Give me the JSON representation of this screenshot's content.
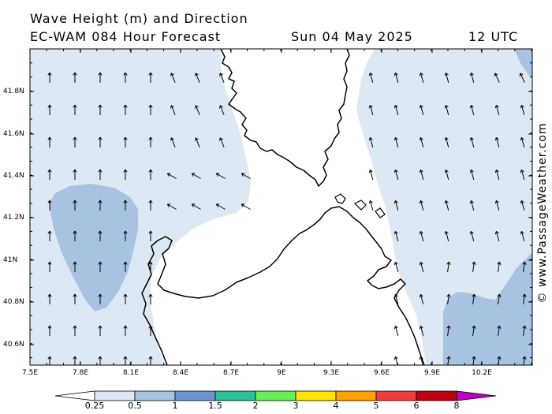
{
  "header": {
    "title": "Wave Height (m) and Direction",
    "model": "EC-WAM 084 Hour Forecast",
    "date": "Sun 04 May 2025",
    "time": "12 UTC"
  },
  "credit": "© www.PassageWeather.com",
  "axes": {
    "x_ticks": [
      "7.5E",
      "7.8E",
      "8.1E",
      "8.4E",
      "8.7E",
      "9E",
      "9.3E",
      "9.6E",
      "9.9E",
      "10.2E"
    ],
    "y_ticks": [
      "41.8N",
      "41.6N",
      "41.4N",
      "41.2N",
      "41N",
      "40.8N",
      "40.6N"
    ]
  },
  "legend": {
    "labels": [
      "0.25",
      "0.5",
      "1",
      "1.5",
      "2",
      "3",
      "4",
      "5",
      "6",
      "8"
    ],
    "colors": [
      "#ffffff",
      "#dde8f5",
      "#a8c2e2",
      "#6d94d0",
      "#2bbf9a",
      "#66ee55",
      "#ffe600",
      "#ffa200",
      "#f03c3c",
      "#c00010",
      "#c000c0"
    ]
  },
  "map_colors": {
    "calm": "#dde8f5",
    "moderate": "#a8c2e2",
    "land": "#ffffff",
    "coast": "#000000"
  }
}
